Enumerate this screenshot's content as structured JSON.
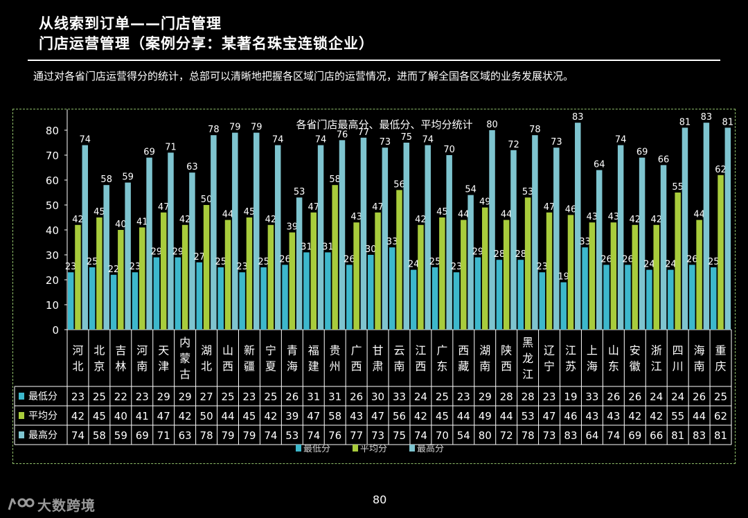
{
  "slide": {
    "title_line1": "从线索到订单——门店管理",
    "title_line2": "门店运营管理（案例分享：某著名珠宝连锁企业）",
    "description": "通过对各省门店运营得分的统计，总部可以清晰地把握各区域门店的运营情况，进而了解全国各区域的业务发展状况。",
    "page_number": "80",
    "logo_text": "大数跨境"
  },
  "chart_data": {
    "type": "bar",
    "title": "各省门店最高分、最低分、平均分统计",
    "categories": [
      "河北",
      "北京",
      "吉林",
      "河南",
      "天津",
      "内蒙古",
      "湖北",
      "山西",
      "新疆",
      "宁夏",
      "青海",
      "福建",
      "贵州",
      "广西",
      "甘肃",
      "云南",
      "江西",
      "广东",
      "西藏",
      "湖南",
      "陕西",
      "黑龙江",
      "辽宁",
      "江苏",
      "上海",
      "山东",
      "安徽",
      "浙江",
      "四川",
      "海南",
      "重庆"
    ],
    "series": [
      {
        "name": "最低分",
        "color": "#3db8cc",
        "values": [
          23,
          25,
          22,
          23,
          29,
          29,
          27,
          25,
          23,
          25,
          26,
          31,
          31,
          26,
          30,
          33,
          24,
          25,
          23,
          29,
          28,
          28,
          23,
          19,
          33,
          26,
          26,
          24,
          24,
          26,
          25
        ]
      },
      {
        "name": "平均分",
        "color": "#a8cc3c",
        "values": [
          42,
          45,
          40,
          41,
          47,
          42,
          50,
          44,
          45,
          42,
          39,
          47,
          58,
          43,
          47,
          56,
          42,
          45,
          44,
          49,
          44,
          53,
          47,
          46,
          43,
          43,
          42,
          42,
          55,
          44,
          62
        ]
      },
      {
        "name": "最高分",
        "color": "#7ec4cf",
        "values": [
          74,
          58,
          59,
          69,
          71,
          63,
          78,
          79,
          79,
          74,
          53,
          74,
          76,
          77,
          73,
          75,
          74,
          70,
          54,
          80,
          72,
          78,
          73,
          83,
          64,
          74,
          69,
          66,
          81,
          83,
          81
        ]
      }
    ],
    "ylim": [
      0,
      90
    ],
    "yticks": [
      0,
      10,
      20,
      30,
      40,
      50,
      60,
      70,
      80,
      90
    ],
    "grid": false,
    "legend": "center",
    "data_table": true
  }
}
